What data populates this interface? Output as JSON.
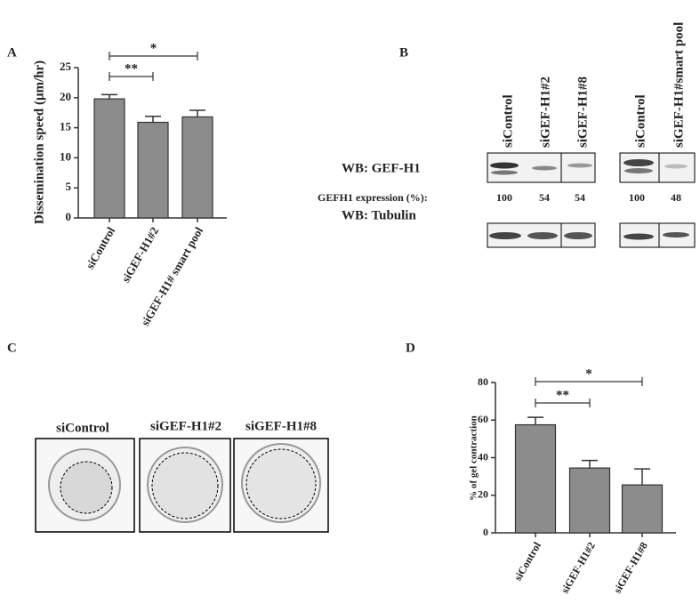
{
  "chart_data": [
    {
      "type": "bar",
      "panel": "A",
      "y_label": "Dissemination speed (μm/hr)",
      "categories": [
        "siControl",
        "siGEF-H1#2",
        "siGEF-H1# smart pool"
      ],
      "values": [
        19.8,
        15.9,
        16.8
      ],
      "errors": [
        0.7,
        1.0,
        1.1
      ],
      "color": "#8c8c8c",
      "ylim": [
        0,
        25
      ],
      "yticks": [
        0,
        5,
        10,
        15,
        20,
        25
      ],
      "significance": [
        {
          "label": "**",
          "categories": [
            "siControl",
            "siGEF-H1#2"
          ]
        },
        {
          "label": "*",
          "categories": [
            "siControl",
            "siGEF-H1# smart pool"
          ]
        }
      ]
    },
    {
      "type": "bar",
      "panel": "D",
      "y_label": "% of gel contraction",
      "categories": [
        "siControl",
        "siGEF-H1#2",
        "siGEF-H1#8"
      ],
      "values": [
        57.5,
        34.5,
        25.5
      ],
      "errors": [
        4,
        4,
        8.5
      ],
      "color": "#8c8c8c",
      "ylim": [
        0,
        80
      ],
      "yticks": [
        0,
        20,
        40,
        60,
        80
      ],
      "significance": [
        {
          "label": "**",
          "categories": [
            "siControl",
            "siGEF-H1#2"
          ]
        },
        {
          "label": "*",
          "categories": [
            "siControl",
            "siGEF-H1#8"
          ]
        }
      ]
    }
  ],
  "blot": {
    "panel": "B",
    "rows": [
      "WB: GEF-H1",
      "WB: Tubulin"
    ],
    "expression_label": "GEFH1 expression (%):",
    "groups": [
      {
        "lanes": [
          "siControl",
          "siGEF-H1#2",
          "siGEF-H1#8"
        ],
        "expression": [
          100,
          54,
          54
        ]
      },
      {
        "lanes": [
          "siControl",
          "siGEF-H1#smart pool"
        ],
        "expression": [
          100,
          48
        ]
      }
    ]
  },
  "gel": {
    "panel": "C",
    "labels": [
      "siControl",
      "siGEF-H1#2",
      "siGEF-H1#8"
    ]
  }
}
